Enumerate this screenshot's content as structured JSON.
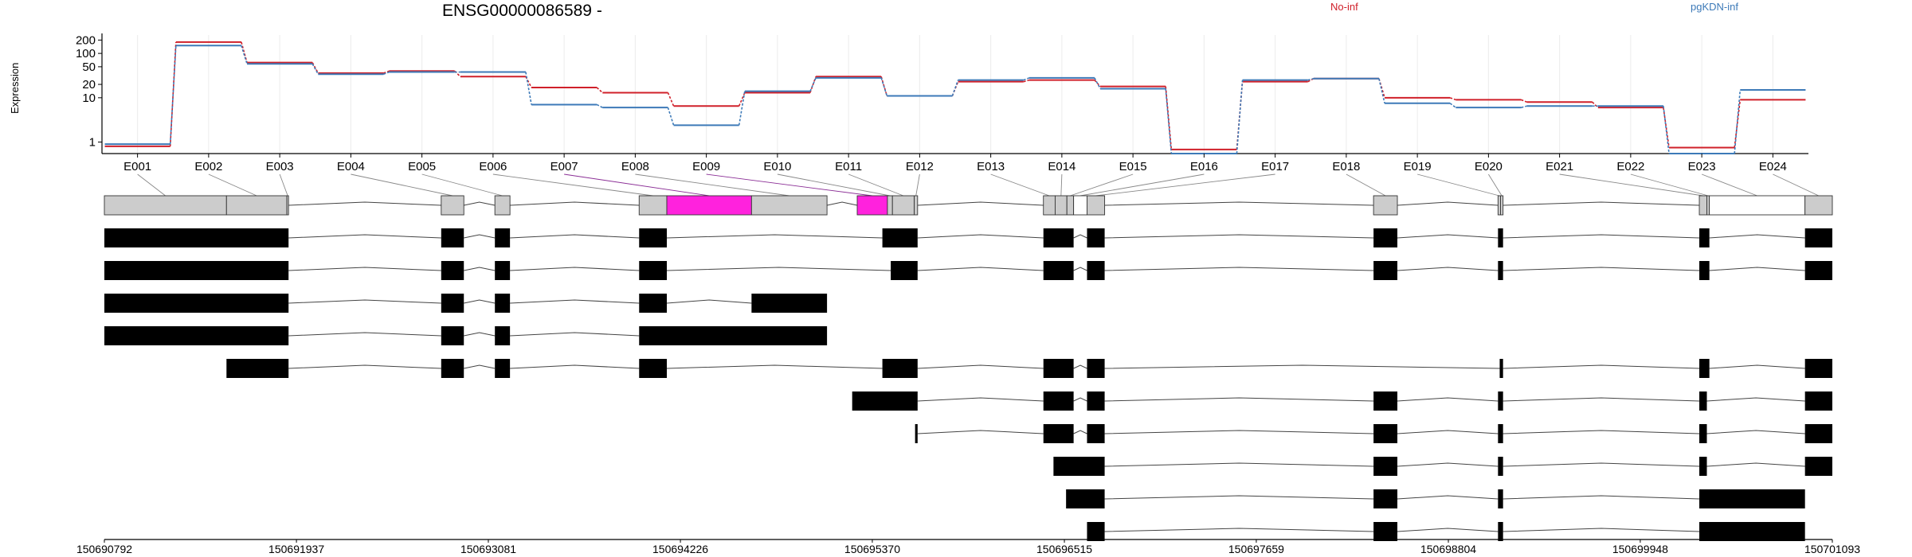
{
  "chart_data": {
    "type": "line",
    "title": "ENSG00000086589 -",
    "ylabel": "Expression",
    "yscale": "log",
    "ylim": [
      0.55,
      260
    ],
    "yticks": [
      "1",
      "10",
      "20",
      "50",
      "100",
      "200"
    ],
    "grid": true,
    "legend_placement": "top",
    "categories": [
      "E001",
      "E002",
      "E003",
      "E004",
      "E005",
      "E006",
      "E007",
      "E008",
      "E009",
      "E010",
      "E011",
      "E012",
      "E013",
      "E014",
      "E015",
      "E016",
      "E017",
      "E018",
      "E019",
      "E020",
      "E021",
      "E022",
      "E023",
      "E024"
    ],
    "series": [
      {
        "name": "No-inf",
        "color": "#d0202a",
        "values": [
          0.8,
          180,
          62,
          36,
          40,
          30,
          17,
          13,
          6.5,
          13,
          30,
          11,
          23,
          25,
          18,
          0.68,
          23,
          27,
          10,
          9,
          8,
          6,
          0.75,
          9
        ]
      },
      {
        "name": "pgKDN-inf",
        "color": "#3d7ab8",
        "values": [
          0.9,
          150,
          58,
          34,
          38,
          38,
          7,
          6,
          2.4,
          14,
          28,
          11,
          25,
          28,
          16,
          0.55,
          25,
          27,
          7.5,
          6,
          6.5,
          6.5,
          0.55,
          15
        ]
      }
    ]
  },
  "gene_model": {
    "genomic_start": 150690792,
    "genomic_end": 150701093,
    "coordinate_ticks": [
      "150690792",
      "150691937",
      "150693081",
      "150694226",
      "150695370",
      "150696515",
      "150697659",
      "150698804",
      "150699948",
      "150701093"
    ],
    "exon_bins": [
      {
        "id": "E001",
        "start": 150690792,
        "end": 150691520,
        "fill": "grey"
      },
      {
        "id": "E002",
        "start": 150691520,
        "end": 150691880,
        "fill": "grey"
      },
      {
        "id": "E003",
        "start": 150691880,
        "end": 150691890,
        "fill": "grey"
      },
      {
        "id": "E004",
        "start": 150692800,
        "end": 150692935,
        "fill": "grey"
      },
      {
        "id": "E005",
        "start": 150693120,
        "end": 150693210,
        "fill": "grey"
      },
      {
        "id": "E006",
        "start": 150693980,
        "end": 150694145,
        "fill": "grey"
      },
      {
        "id": "E007",
        "start": 150694145,
        "end": 150694650,
        "fill": "magenta"
      },
      {
        "id": "E008",
        "start": 150694650,
        "end": 150695100,
        "fill": "grey"
      },
      {
        "id": "E009",
        "start": 150695280,
        "end": 150695460,
        "fill": "magenta"
      },
      {
        "id": "E010",
        "start": 150695460,
        "end": 150695490,
        "fill": "grey"
      },
      {
        "id": "E011",
        "start": 150695490,
        "end": 150695620,
        "fill": "grey"
      },
      {
        "id": "E012",
        "start": 150695620,
        "end": 150695640,
        "fill": "grey"
      },
      {
        "id": "E013",
        "start": 150696390,
        "end": 150696460,
        "fill": "grey"
      },
      {
        "id": "E014",
        "start": 150696460,
        "end": 150696530,
        "fill": "grey"
      },
      {
        "id": "E015",
        "start": 150696530,
        "end": 150696570,
        "fill": "grey"
      },
      {
        "id": "E016",
        "start": 150696570,
        "end": 150696650,
        "fill": "white"
      },
      {
        "id": "E017",
        "start": 150696650,
        "end": 150696755,
        "fill": "grey"
      },
      {
        "id": "E018",
        "start": 150698358,
        "end": 150698500,
        "fill": "grey"
      },
      {
        "id": "E019",
        "start": 150699100,
        "end": 150699115,
        "fill": "grey"
      },
      {
        "id": "E020",
        "start": 150699115,
        "end": 150699130,
        "fill": "grey"
      },
      {
        "id": "E021",
        "start": 150700300,
        "end": 150700345,
        "fill": "grey"
      },
      {
        "id": "E022",
        "start": 150700345,
        "end": 150700360,
        "fill": "grey"
      },
      {
        "id": "E023",
        "start": 150700360,
        "end": 150700930,
        "fill": "white"
      },
      {
        "id": "E024",
        "start": 150700930,
        "end": 150701093,
        "fill": "grey"
      }
    ],
    "transcripts": [
      [
        [
          150690792,
          150691890
        ],
        [
          150692800,
          150692935
        ],
        [
          150693120,
          150693210
        ],
        [
          150693980,
          150694145
        ],
        [
          150695430,
          150695640
        ],
        [
          150696390,
          150696570
        ],
        [
          150696650,
          150696755
        ],
        [
          150698358,
          150698500
        ],
        [
          150699100,
          150699130
        ],
        [
          150700300,
          150700360
        ],
        [
          150700930,
          150701093
        ]
      ],
      [
        [
          150690792,
          150691890
        ],
        [
          150692800,
          150692935
        ],
        [
          150693120,
          150693210
        ],
        [
          150693980,
          150694145
        ],
        [
          150695480,
          150695640
        ],
        [
          150696390,
          150696570
        ],
        [
          150696650,
          150696755
        ],
        [
          150698358,
          150698500
        ],
        [
          150699100,
          150699130
        ],
        [
          150700300,
          150700360
        ],
        [
          150700930,
          150701093
        ]
      ],
      [
        [
          150690792,
          150691890
        ],
        [
          150692800,
          150692935
        ],
        [
          150693120,
          150693210
        ],
        [
          150693980,
          150694145
        ],
        [
          150694650,
          150695100
        ]
      ],
      [
        [
          150690792,
          150691890
        ],
        [
          150692800,
          150692935
        ],
        [
          150693120,
          150693210
        ],
        [
          150693980,
          150695100
        ]
      ],
      [
        [
          150691520,
          150691890
        ],
        [
          150692800,
          150692935
        ],
        [
          150693120,
          150693210
        ],
        [
          150693980,
          150694145
        ],
        [
          150695430,
          150695640
        ],
        [
          150696390,
          150696570
        ],
        [
          150696650,
          150696755
        ],
        [
          150699110,
          150699130
        ],
        [
          150700300,
          150700360
        ],
        [
          150700930,
          150701093
        ]
      ],
      [
        [
          150695250,
          150695640
        ],
        [
          150696390,
          150696570
        ],
        [
          150696650,
          150696755
        ],
        [
          150698358,
          150698500
        ],
        [
          150699100,
          150699130
        ],
        [
          150700300,
          150700345
        ],
        [
          150700930,
          150701093
        ]
      ],
      [
        [
          150695625,
          150695640
        ],
        [
          150696390,
          150696570
        ],
        [
          150696650,
          150696755
        ],
        [
          150698358,
          150698500
        ],
        [
          150699100,
          150699130
        ],
        [
          150700300,
          150700345
        ],
        [
          150700930,
          150701093
        ]
      ],
      [
        [
          150696450,
          150696755
        ],
        [
          150698358,
          150698500
        ],
        [
          150699100,
          150699130
        ],
        [
          150700300,
          150700345
        ],
        [
          150700930,
          150701093
        ]
      ],
      [
        [
          150696525,
          150696755
        ],
        [
          150698358,
          150698500
        ],
        [
          150699100,
          150699130
        ],
        [
          150700300,
          150700930
        ]
      ],
      [
        [
          150696650,
          150696755
        ],
        [
          150698358,
          150698500
        ],
        [
          150699100,
          150699130
        ],
        [
          150700300,
          150700930
        ]
      ]
    ]
  }
}
